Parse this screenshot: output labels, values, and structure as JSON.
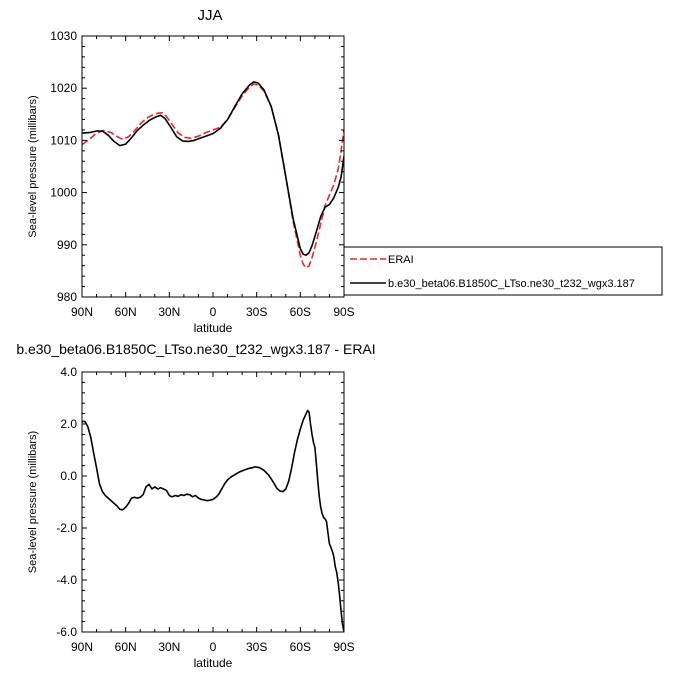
{
  "chart_data": [
    {
      "type": "line",
      "title": "JJA",
      "xlabel": "latitude",
      "ylabel": "Sea-level pressure (millibars)",
      "xlim": [
        90,
        -90
      ],
      "ylim": [
        980,
        1030
      ],
      "xtick_values": [
        90,
        60,
        30,
        0,
        -30,
        -60,
        -90
      ],
      "xtick_labels": [
        "90N",
        "60N",
        "30N",
        "0",
        "30S",
        "60S",
        "90S"
      ],
      "ytick_values": [
        980,
        990,
        1000,
        1010,
        1020,
        1030
      ],
      "ytick_labels": [
        "980",
        "990",
        "1000",
        "1010",
        "1020",
        "1030"
      ],
      "legend_position": "right",
      "series": [
        {
          "name": "ERAI",
          "color": "#e8262a",
          "dash": "dashed",
          "points": [
            [
              90,
              1009.2
            ],
            [
              85,
              1010.2
            ],
            [
              80,
              1011.4
            ],
            [
              75,
              1011.9
            ],
            [
              70,
              1011.5
            ],
            [
              65,
              1010.6
            ],
            [
              62,
              1010.2
            ],
            [
              58,
              1010.7
            ],
            [
              54,
              1011.8
            ],
            [
              50,
              1013.1
            ],
            [
              46,
              1014.2
            ],
            [
              42,
              1014.8
            ],
            [
              38,
              1015.2
            ],
            [
              35,
              1015.3
            ],
            [
              32,
              1014.6
            ],
            [
              28,
              1013.0
            ],
            [
              24,
              1011.5
            ],
            [
              20,
              1010.6
            ],
            [
              15,
              1010.4
            ],
            [
              10,
              1010.8
            ],
            [
              5,
              1011.5
            ],
            [
              0,
              1012.0
            ],
            [
              -5,
              1012.5
            ],
            [
              -10,
              1014.0
            ],
            [
              -15,
              1016.3
            ],
            [
              -20,
              1018.5
            ],
            [
              -25,
              1020.2
            ],
            [
              -28,
              1020.8
            ],
            [
              -31,
              1020.6
            ],
            [
              -35,
              1019.5
            ],
            [
              -40,
              1016.5
            ],
            [
              -45,
              1011.0
            ],
            [
              -50,
              1003.0
            ],
            [
              -55,
              994.5
            ],
            [
              -60,
              988.0
            ],
            [
              -62,
              986.3
            ],
            [
              -64,
              985.6
            ],
            [
              -66,
              986.0
            ],
            [
              -68,
              987.5
            ],
            [
              -71,
              990.5
            ],
            [
              -74,
              994.0
            ],
            [
              -77,
              997.5
            ],
            [
              -80,
              999.5
            ],
            [
              -83,
              1001.5
            ],
            [
              -86,
              1004.5
            ],
            [
              -88,
              1008.0
            ],
            [
              -90,
              1012.0
            ]
          ]
        },
        {
          "name": "b.e30_beta06.B1850C_LTso.ne30_t232_wgx3.187",
          "color": "#000000",
          "dash": "solid",
          "points": [
            [
              90,
              1011.4
            ],
            [
              85,
              1011.5
            ],
            [
              80,
              1011.8
            ],
            [
              76,
              1011.8
            ],
            [
              72,
              1011.0
            ],
            [
              68,
              1009.8
            ],
            [
              64,
              1009.0
            ],
            [
              60,
              1009.3
            ],
            [
              56,
              1010.5
            ],
            [
              52,
              1011.9
            ],
            [
              48,
              1012.9
            ],
            [
              44,
              1013.8
            ],
            [
              40,
              1014.4
            ],
            [
              36,
              1014.8
            ],
            [
              33,
              1014.2
            ],
            [
              29,
              1012.5
            ],
            [
              25,
              1010.7
            ],
            [
              21,
              1009.9
            ],
            [
              17,
              1009.8
            ],
            [
              13,
              1010.0
            ],
            [
              9,
              1010.4
            ],
            [
              5,
              1010.8
            ],
            [
              0,
              1011.3
            ],
            [
              -5,
              1012.3
            ],
            [
              -10,
              1014.0
            ],
            [
              -15,
              1016.5
            ],
            [
              -20,
              1018.9
            ],
            [
              -25,
              1020.6
            ],
            [
              -28,
              1021.2
            ],
            [
              -31,
              1021.0
            ],
            [
              -35,
              1019.7
            ],
            [
              -40,
              1016.5
            ],
            [
              -45,
              1011.0
            ],
            [
              -50,
              1003.0
            ],
            [
              -55,
              995.0
            ],
            [
              -60,
              989.3
            ],
            [
              -62,
              988.2
            ],
            [
              -64,
              988.0
            ],
            [
              -66,
              988.5
            ],
            [
              -68,
              989.8
            ],
            [
              -71,
              992.5
            ],
            [
              -74,
              995.4
            ],
            [
              -77,
              997.2
            ],
            [
              -80,
              997.7
            ],
            [
              -83,
              999.0
            ],
            [
              -86,
              1001.0
            ],
            [
              -88,
              1003.0
            ],
            [
              -90,
              1007.0
            ]
          ]
        }
      ]
    },
    {
      "type": "line",
      "title": "b.e30_beta06.B1850C_LTso.ne30_t232_wgx3.187 - ERAI",
      "xlabel": "latitude",
      "ylabel": "Sea-level pressure (millibars)",
      "xlim": [
        90,
        -90
      ],
      "ylim": [
        -6.0,
        4.0
      ],
      "xtick_values": [
        90,
        60,
        30,
        0,
        -30,
        -60,
        -90
      ],
      "xtick_labels": [
        "90N",
        "60N",
        "30N",
        "0",
        "30S",
        "60S",
        "90S"
      ],
      "ytick_values": [
        -6,
        -4,
        -2,
        0,
        2,
        4
      ],
      "ytick_labels": [
        "-6.0",
        "-4.0",
        "-2.0",
        "0.0",
        "2.0",
        "4.0"
      ],
      "series": [
        {
          "color": "#000000",
          "dash": "solid",
          "points": [
            [
              90,
              2.1
            ],
            [
              88,
              2.1
            ],
            [
              86,
              1.9
            ],
            [
              84,
              1.5
            ],
            [
              82,
              0.9
            ],
            [
              80,
              0.3
            ],
            [
              78,
              -0.3
            ],
            [
              76,
              -0.6
            ],
            [
              74,
              -0.75
            ],
            [
              72,
              -0.85
            ],
            [
              70,
              -0.95
            ],
            [
              68,
              -1.05
            ],
            [
              66,
              -1.15
            ],
            [
              64,
              -1.28
            ],
            [
              62,
              -1.3
            ],
            [
              60,
              -1.2
            ],
            [
              58,
              -1.05
            ],
            [
              56,
              -0.85
            ],
            [
              54,
              -0.82
            ],
            [
              52,
              -0.85
            ],
            [
              50,
              -0.82
            ],
            [
              48,
              -0.72
            ],
            [
              46,
              -0.42
            ],
            [
              44,
              -0.32
            ],
            [
              42,
              -0.5
            ],
            [
              40,
              -0.42
            ],
            [
              38,
              -0.5
            ],
            [
              36,
              -0.45
            ],
            [
              34,
              -0.5
            ],
            [
              32,
              -0.55
            ],
            [
              30,
              -0.75
            ],
            [
              28,
              -0.8
            ],
            [
              26,
              -0.75
            ],
            [
              24,
              -0.78
            ],
            [
              22,
              -0.72
            ],
            [
              20,
              -0.75
            ],
            [
              18,
              -0.7
            ],
            [
              16,
              -0.72
            ],
            [
              14,
              -0.8
            ],
            [
              12,
              -0.75
            ],
            [
              10,
              -0.85
            ],
            [
              8,
              -0.9
            ],
            [
              6,
              -0.92
            ],
            [
              4,
              -0.95
            ],
            [
              2,
              -0.93
            ],
            [
              0,
              -0.9
            ],
            [
              -2,
              -0.82
            ],
            [
              -4,
              -0.7
            ],
            [
              -6,
              -0.5
            ],
            [
              -8,
              -0.3
            ],
            [
              -10,
              -0.15
            ],
            [
              -12,
              -0.05
            ],
            [
              -15,
              0.05
            ],
            [
              -18,
              0.15
            ],
            [
              -21,
              0.22
            ],
            [
              -24,
              0.28
            ],
            [
              -27,
              0.32
            ],
            [
              -29,
              0.35
            ],
            [
              -32,
              0.32
            ],
            [
              -35,
              0.22
            ],
            [
              -38,
              0.05
            ],
            [
              -41,
              -0.2
            ],
            [
              -44,
              -0.48
            ],
            [
              -46,
              -0.58
            ],
            [
              -48,
              -0.6
            ],
            [
              -50,
              -0.5
            ],
            [
              -52,
              -0.2
            ],
            [
              -54,
              0.3
            ],
            [
              -56,
              0.9
            ],
            [
              -58,
              1.4
            ],
            [
              -60,
              1.8
            ],
            [
              -62,
              2.15
            ],
            [
              -64,
              2.4
            ],
            [
              -65,
              2.52
            ],
            [
              -66,
              2.45
            ],
            [
              -67,
              2.0
            ],
            [
              -68,
              1.6
            ],
            [
              -69,
              1.3
            ],
            [
              -70,
              1.1
            ],
            [
              -71,
              0.5
            ],
            [
              -72,
              -0.2
            ],
            [
              -73,
              -0.8
            ],
            [
              -74,
              -1.2
            ],
            [
              -75,
              -1.45
            ],
            [
              -76,
              -1.6
            ],
            [
              -77,
              -1.65
            ],
            [
              -78,
              -1.75
            ],
            [
              -79,
              -2.2
            ],
            [
              -80,
              -2.6
            ],
            [
              -81,
              -2.75
            ],
            [
              -82,
              -2.9
            ],
            [
              -83,
              -3.1
            ],
            [
              -84,
              -3.5
            ],
            [
              -85,
              -3.7
            ],
            [
              -86,
              -4.1
            ],
            [
              -87,
              -4.6
            ],
            [
              -88,
              -5.2
            ],
            [
              -89,
              -5.7
            ],
            [
              -90,
              -6.0
            ]
          ]
        }
      ]
    }
  ]
}
